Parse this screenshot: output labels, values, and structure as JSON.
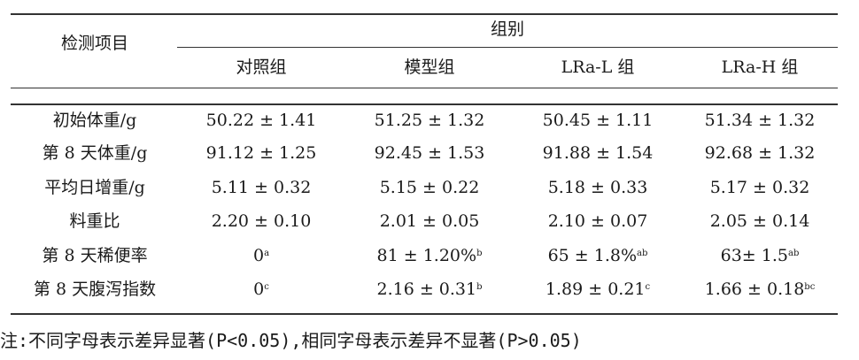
{
  "table": {
    "header_item": "检测项目",
    "header_group": "组别",
    "columns": [
      "对照组",
      "模型组",
      "LRa-L 组",
      "LRa-H 组"
    ],
    "rows": [
      {
        "label": "初始体重/g",
        "cells": [
          {
            "v": "50.22 ± 1.41",
            "s": ""
          },
          {
            "v": "51.25 ± 1.32",
            "s": ""
          },
          {
            "v": "50.45 ± 1.11",
            "s": ""
          },
          {
            "v": "51.34 ± 1.32",
            "s": ""
          }
        ]
      },
      {
        "label": "第 8 天体重/g",
        "cells": [
          {
            "v": "91.12 ± 1.25",
            "s": ""
          },
          {
            "v": "92.45 ± 1.53",
            "s": ""
          },
          {
            "v": "91.88 ± 1.54",
            "s": ""
          },
          {
            "v": "92.68 ± 1.32",
            "s": ""
          }
        ]
      },
      {
        "label": "平均日增重/g",
        "cells": [
          {
            "v": "5.11 ± 0.32",
            "s": ""
          },
          {
            "v": "5.15 ± 0.22",
            "s": ""
          },
          {
            "v": "5.18 ± 0.33",
            "s": ""
          },
          {
            "v": "5.17 ± 0.32",
            "s": ""
          }
        ]
      },
      {
        "label": "料重比",
        "cells": [
          {
            "v": "2.20 ± 0.10",
            "s": ""
          },
          {
            "v": "2.01 ± 0.05",
            "s": ""
          },
          {
            "v": "2.10 ± 0.07",
            "s": ""
          },
          {
            "v": "2.05 ± 0.14",
            "s": ""
          }
        ]
      },
      {
        "label": "第 8 天稀便率",
        "cells": [
          {
            "v": "0",
            "s": "a"
          },
          {
            "v": "81 ± 1.20%",
            "s": "b"
          },
          {
            "v": "65 ± 1.8%",
            "s": "ab"
          },
          {
            "v": "63± 1.5",
            "s": "ab"
          }
        ]
      },
      {
        "label": "第 8 天腹泻指数",
        "cells": [
          {
            "v": "0",
            "s": "c"
          },
          {
            "v": "2.16 ± 0.31",
            "s": "b"
          },
          {
            "v": "1.89 ± 0.21",
            "s": "c"
          },
          {
            "v": "1.66 ± 0.18",
            "s": "bc"
          }
        ]
      }
    ]
  },
  "note": "注:不同字母表示差异显著(P<0.05),相同字母表示差异不显著(P>0.05)"
}
